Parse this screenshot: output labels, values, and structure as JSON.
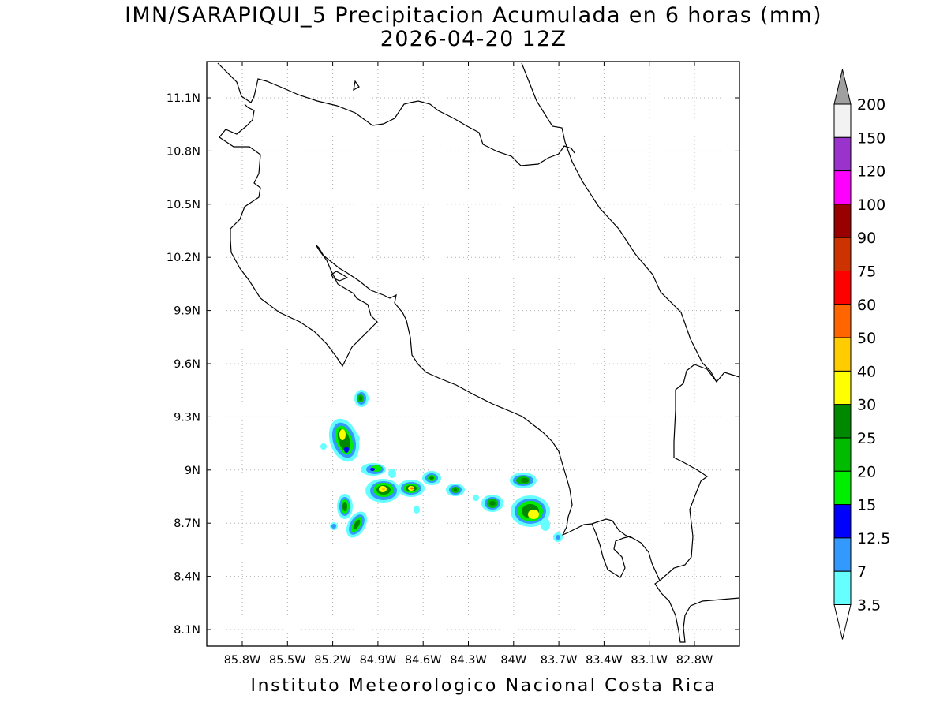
{
  "title": {
    "line1": "IMN/SARAPIQUI_5 Precipitacion Acumulada en 6 horas (mm)",
    "line2": "2026-04-20 12Z"
  },
  "footer": "Instituto Meteorologico Nacional Costa Rica",
  "map": {
    "lon_ticks": [
      "85.8W",
      "85.5W",
      "85.2W",
      "84.9W",
      "84.6W",
      "84.3W",
      "84W",
      "83.7W",
      "83.4W",
      "83.1W",
      "82.8W"
    ],
    "lat_ticks": [
      "11.1N",
      "10.8N",
      "10.5N",
      "10.2N",
      "9.9N",
      "9.6N",
      "9.3N",
      "9N",
      "8.7N",
      "8.4N",
      "8.1N"
    ],
    "grid": "dotted"
  },
  "colorbar": {
    "labels": [
      "200",
      "150",
      "120",
      "100",
      "90",
      "75",
      "60",
      "50",
      "40",
      "30",
      "25",
      "20",
      "15",
      "12.5",
      "7",
      "3.5"
    ],
    "colors": [
      "#f2f2f2",
      "#9933cc",
      "#ff00ff",
      "#990000",
      "#cc3300",
      "#ff0000",
      "#ff6600",
      "#ffcc00",
      "#ffff00",
      "#008800",
      "#00bb00",
      "#00ee00",
      "#0000ff",
      "#3399ff",
      "#66ffff"
    ],
    "over_color": "#a0a0a0",
    "under_color": "#ffffff"
  }
}
